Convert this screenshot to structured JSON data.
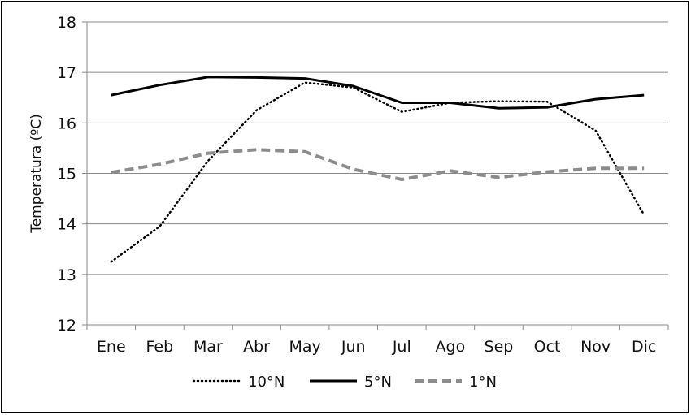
{
  "chart_data": {
    "type": "line",
    "title": "",
    "xlabel": "",
    "ylabel": "Temperatura (ºC)",
    "ylim": [
      12,
      18
    ],
    "yticks": [
      "12",
      "13",
      "14",
      "15",
      "16",
      "17",
      "18"
    ],
    "categories": [
      "Ene",
      "Feb",
      "Mar",
      "Abr",
      "May",
      "Jun",
      "Jul",
      "Ago",
      "Sep",
      "Oct",
      "Nov",
      "Dic"
    ],
    "grid": "horizontal",
    "legend_position": "bottom",
    "series": [
      {
        "name": "10°N",
        "style": "dotted",
        "color": "#000000",
        "values": [
          13.25,
          13.95,
          15.25,
          16.25,
          16.8,
          16.7,
          16.22,
          16.4,
          16.43,
          16.42,
          15.85,
          14.18
        ]
      },
      {
        "name": "5°N",
        "style": "solid",
        "color": "#000000",
        "values": [
          16.55,
          16.75,
          16.91,
          16.9,
          16.88,
          16.73,
          16.4,
          16.4,
          16.29,
          16.31,
          16.47,
          16.55
        ]
      },
      {
        "name": "1°N",
        "style": "dashed",
        "color": "#8c8c8c",
        "values": [
          15.02,
          15.18,
          15.4,
          15.47,
          15.43,
          15.08,
          14.88,
          15.05,
          14.92,
          15.03,
          15.1,
          15.1
        ]
      }
    ]
  }
}
